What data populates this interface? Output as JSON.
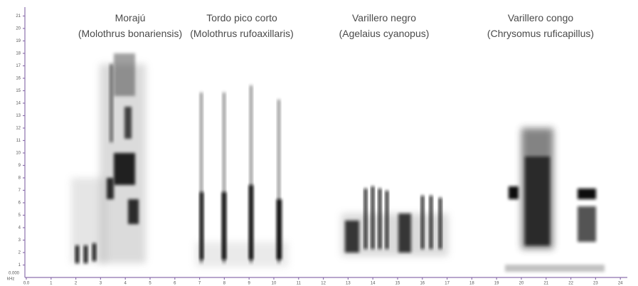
{
  "species": [
    {
      "common": "Morajú",
      "scientific": "(Molothrus bonariensis)"
    },
    {
      "common": "Tordo pico corto",
      "scientific": "(Molothrus rufoaxillaris)"
    },
    {
      "common": "Varillero negro",
      "scientific": "(Agelaius cyanopus)"
    },
    {
      "common": "Varillero congo",
      "scientific": "(Chrysomus ruficapillus)"
    }
  ],
  "x_axis": {
    "ticks": [
      "0.0",
      "1",
      "2",
      "3",
      "4",
      "5",
      "6",
      "7",
      "8",
      "9",
      "10",
      "11",
      "12",
      "13",
      "14",
      "15",
      "16",
      "17",
      "18",
      "19",
      "20",
      "21",
      "22",
      "23",
      "24"
    ]
  },
  "y_axis": {
    "origin": "0.000",
    "unit": "kHz",
    "ticks": [
      "1",
      "2",
      "3",
      "4",
      "5",
      "6",
      "7",
      "8",
      "9",
      "10",
      "11",
      "12",
      "13",
      "14",
      "15",
      "16",
      "17",
      "18",
      "19",
      "20",
      "21"
    ]
  }
}
